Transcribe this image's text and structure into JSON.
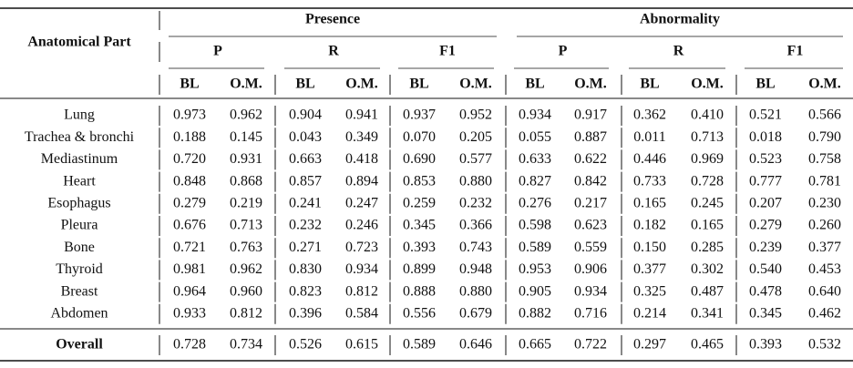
{
  "table": {
    "header": {
      "row_label": "Anatomical Part",
      "groups": [
        "Presence",
        "Abnormality"
      ],
      "metrics": [
        "P",
        "R",
        "F1"
      ],
      "methods": [
        "BL",
        "O.M."
      ]
    },
    "rows": [
      {
        "part": "Lung",
        "values": [
          "0.973",
          "0.962",
          "0.904",
          "0.941",
          "0.937",
          "0.952",
          "0.934",
          "0.917",
          "0.362",
          "0.410",
          "0.521",
          "0.566"
        ]
      },
      {
        "part": "Trachea & bronchi",
        "values": [
          "0.188",
          "0.145",
          "0.043",
          "0.349",
          "0.070",
          "0.205",
          "0.055",
          "0.887",
          "0.011",
          "0.713",
          "0.018",
          "0.790"
        ]
      },
      {
        "part": "Mediastinum",
        "values": [
          "0.720",
          "0.931",
          "0.663",
          "0.418",
          "0.690",
          "0.577",
          "0.633",
          "0.622",
          "0.446",
          "0.969",
          "0.523",
          "0.758"
        ]
      },
      {
        "part": "Heart",
        "values": [
          "0.848",
          "0.868",
          "0.857",
          "0.894",
          "0.853",
          "0.880",
          "0.827",
          "0.842",
          "0.733",
          "0.728",
          "0.777",
          "0.781"
        ]
      },
      {
        "part": "Esophagus",
        "values": [
          "0.279",
          "0.219",
          "0.241",
          "0.247",
          "0.259",
          "0.232",
          "0.276",
          "0.217",
          "0.165",
          "0.245",
          "0.207",
          "0.230"
        ]
      },
      {
        "part": "Pleura",
        "values": [
          "0.676",
          "0.713",
          "0.232",
          "0.246",
          "0.345",
          "0.366",
          "0.598",
          "0.623",
          "0.182",
          "0.165",
          "0.279",
          "0.260"
        ]
      },
      {
        "part": "Bone",
        "values": [
          "0.721",
          "0.763",
          "0.271",
          "0.723",
          "0.393",
          "0.743",
          "0.589",
          "0.559",
          "0.150",
          "0.285",
          "0.239",
          "0.377"
        ]
      },
      {
        "part": "Thyroid",
        "values": [
          "0.981",
          "0.962",
          "0.830",
          "0.934",
          "0.899",
          "0.948",
          "0.953",
          "0.906",
          "0.377",
          "0.302",
          "0.540",
          "0.453"
        ]
      },
      {
        "part": "Breast",
        "values": [
          "0.964",
          "0.960",
          "0.823",
          "0.812",
          "0.888",
          "0.880",
          "0.905",
          "0.934",
          "0.325",
          "0.487",
          "0.478",
          "0.640"
        ]
      },
      {
        "part": "Abdomen",
        "values": [
          "0.933",
          "0.812",
          "0.396",
          "0.584",
          "0.556",
          "0.679",
          "0.882",
          "0.716",
          "0.214",
          "0.341",
          "0.345",
          "0.462"
        ]
      }
    ],
    "overall": {
      "part": "Overall",
      "values": [
        "0.728",
        "0.734",
        "0.526",
        "0.615",
        "0.589",
        "0.646",
        "0.665",
        "0.722",
        "0.297",
        "0.465",
        "0.393",
        "0.532"
      ]
    }
  }
}
